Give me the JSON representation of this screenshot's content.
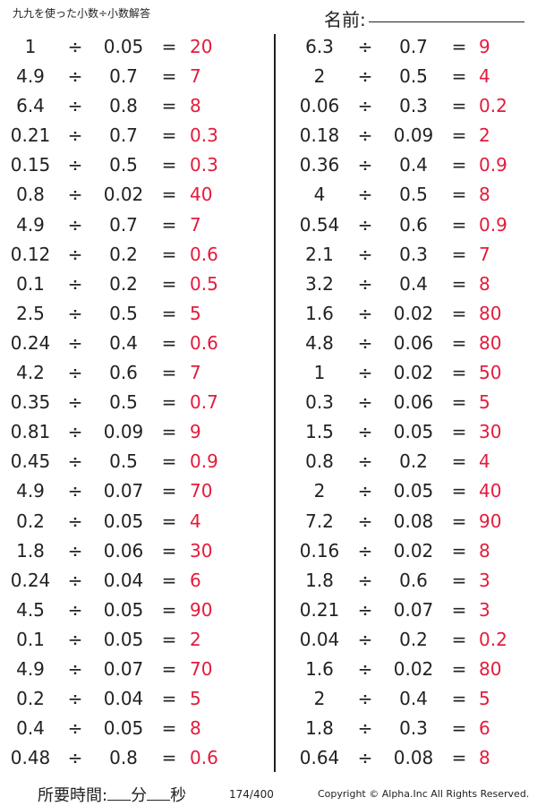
{
  "title": "九九を使った小数÷小数解答",
  "name_label": "名前:",
  "operator": "÷",
  "equals": "=",
  "left_problems": [
    {
      "a": "1",
      "b": "0.05",
      "ans": "20"
    },
    {
      "a": "4.9",
      "b": "0.7",
      "ans": "7"
    },
    {
      "a": "6.4",
      "b": "0.8",
      "ans": "8"
    },
    {
      "a": "0.21",
      "b": "0.7",
      "ans": "0.3"
    },
    {
      "a": "0.15",
      "b": "0.5",
      "ans": "0.3"
    },
    {
      "a": "0.8",
      "b": "0.02",
      "ans": "40"
    },
    {
      "a": "4.9",
      "b": "0.7",
      "ans": "7"
    },
    {
      "a": "0.12",
      "b": "0.2",
      "ans": "0.6"
    },
    {
      "a": "0.1",
      "b": "0.2",
      "ans": "0.5"
    },
    {
      "a": "2.5",
      "b": "0.5",
      "ans": "5"
    },
    {
      "a": "0.24",
      "b": "0.4",
      "ans": "0.6"
    },
    {
      "a": "4.2",
      "b": "0.6",
      "ans": "7"
    },
    {
      "a": "0.35",
      "b": "0.5",
      "ans": "0.7"
    },
    {
      "a": "0.81",
      "b": "0.09",
      "ans": "9"
    },
    {
      "a": "0.45",
      "b": "0.5",
      "ans": "0.9"
    },
    {
      "a": "4.9",
      "b": "0.07",
      "ans": "70"
    },
    {
      "a": "0.2",
      "b": "0.05",
      "ans": "4"
    },
    {
      "a": "1.8",
      "b": "0.06",
      "ans": "30"
    },
    {
      "a": "0.24",
      "b": "0.04",
      "ans": "6"
    },
    {
      "a": "4.5",
      "b": "0.05",
      "ans": "90"
    },
    {
      "a": "0.1",
      "b": "0.05",
      "ans": "2"
    },
    {
      "a": "4.9",
      "b": "0.07",
      "ans": "70"
    },
    {
      "a": "0.2",
      "b": "0.04",
      "ans": "5"
    },
    {
      "a": "0.4",
      "b": "0.05",
      "ans": "8"
    },
    {
      "a": "0.48",
      "b": "0.8",
      "ans": "0.6"
    }
  ],
  "right_problems": [
    {
      "a": "6.3",
      "b": "0.7",
      "ans": "9"
    },
    {
      "a": "2",
      "b": "0.5",
      "ans": "4"
    },
    {
      "a": "0.06",
      "b": "0.3",
      "ans": "0.2"
    },
    {
      "a": "0.18",
      "b": "0.09",
      "ans": "2"
    },
    {
      "a": "0.36",
      "b": "0.4",
      "ans": "0.9"
    },
    {
      "a": "4",
      "b": "0.5",
      "ans": "8"
    },
    {
      "a": "0.54",
      "b": "0.6",
      "ans": "0.9"
    },
    {
      "a": "2.1",
      "b": "0.3",
      "ans": "7"
    },
    {
      "a": "3.2",
      "b": "0.4",
      "ans": "8"
    },
    {
      "a": "1.6",
      "b": "0.02",
      "ans": "80"
    },
    {
      "a": "4.8",
      "b": "0.06",
      "ans": "80"
    },
    {
      "a": "1",
      "b": "0.02",
      "ans": "50"
    },
    {
      "a": "0.3",
      "b": "0.06",
      "ans": "5"
    },
    {
      "a": "1.5",
      "b": "0.05",
      "ans": "30"
    },
    {
      "a": "0.8",
      "b": "0.2",
      "ans": "4"
    },
    {
      "a": "2",
      "b": "0.05",
      "ans": "40"
    },
    {
      "a": "7.2",
      "b": "0.08",
      "ans": "90"
    },
    {
      "a": "0.16",
      "b": "0.02",
      "ans": "8"
    },
    {
      "a": "1.8",
      "b": "0.6",
      "ans": "3"
    },
    {
      "a": "0.21",
      "b": "0.07",
      "ans": "3"
    },
    {
      "a": "0.04",
      "b": "0.2",
      "ans": "0.2"
    },
    {
      "a": "1.6",
      "b": "0.02",
      "ans": "80"
    },
    {
      "a": "2",
      "b": "0.4",
      "ans": "5"
    },
    {
      "a": "1.8",
      "b": "0.3",
      "ans": "6"
    },
    {
      "a": "0.64",
      "b": "0.08",
      "ans": "8"
    }
  ],
  "footer": {
    "time_label": "所要時間:",
    "minutes": "分",
    "seconds": "秒",
    "page": "174/400",
    "copyright": "Copyright © Alpha.Inc All Rights Reserved."
  },
  "colors": {
    "answer": "#e31b3c",
    "text": "#222222"
  }
}
